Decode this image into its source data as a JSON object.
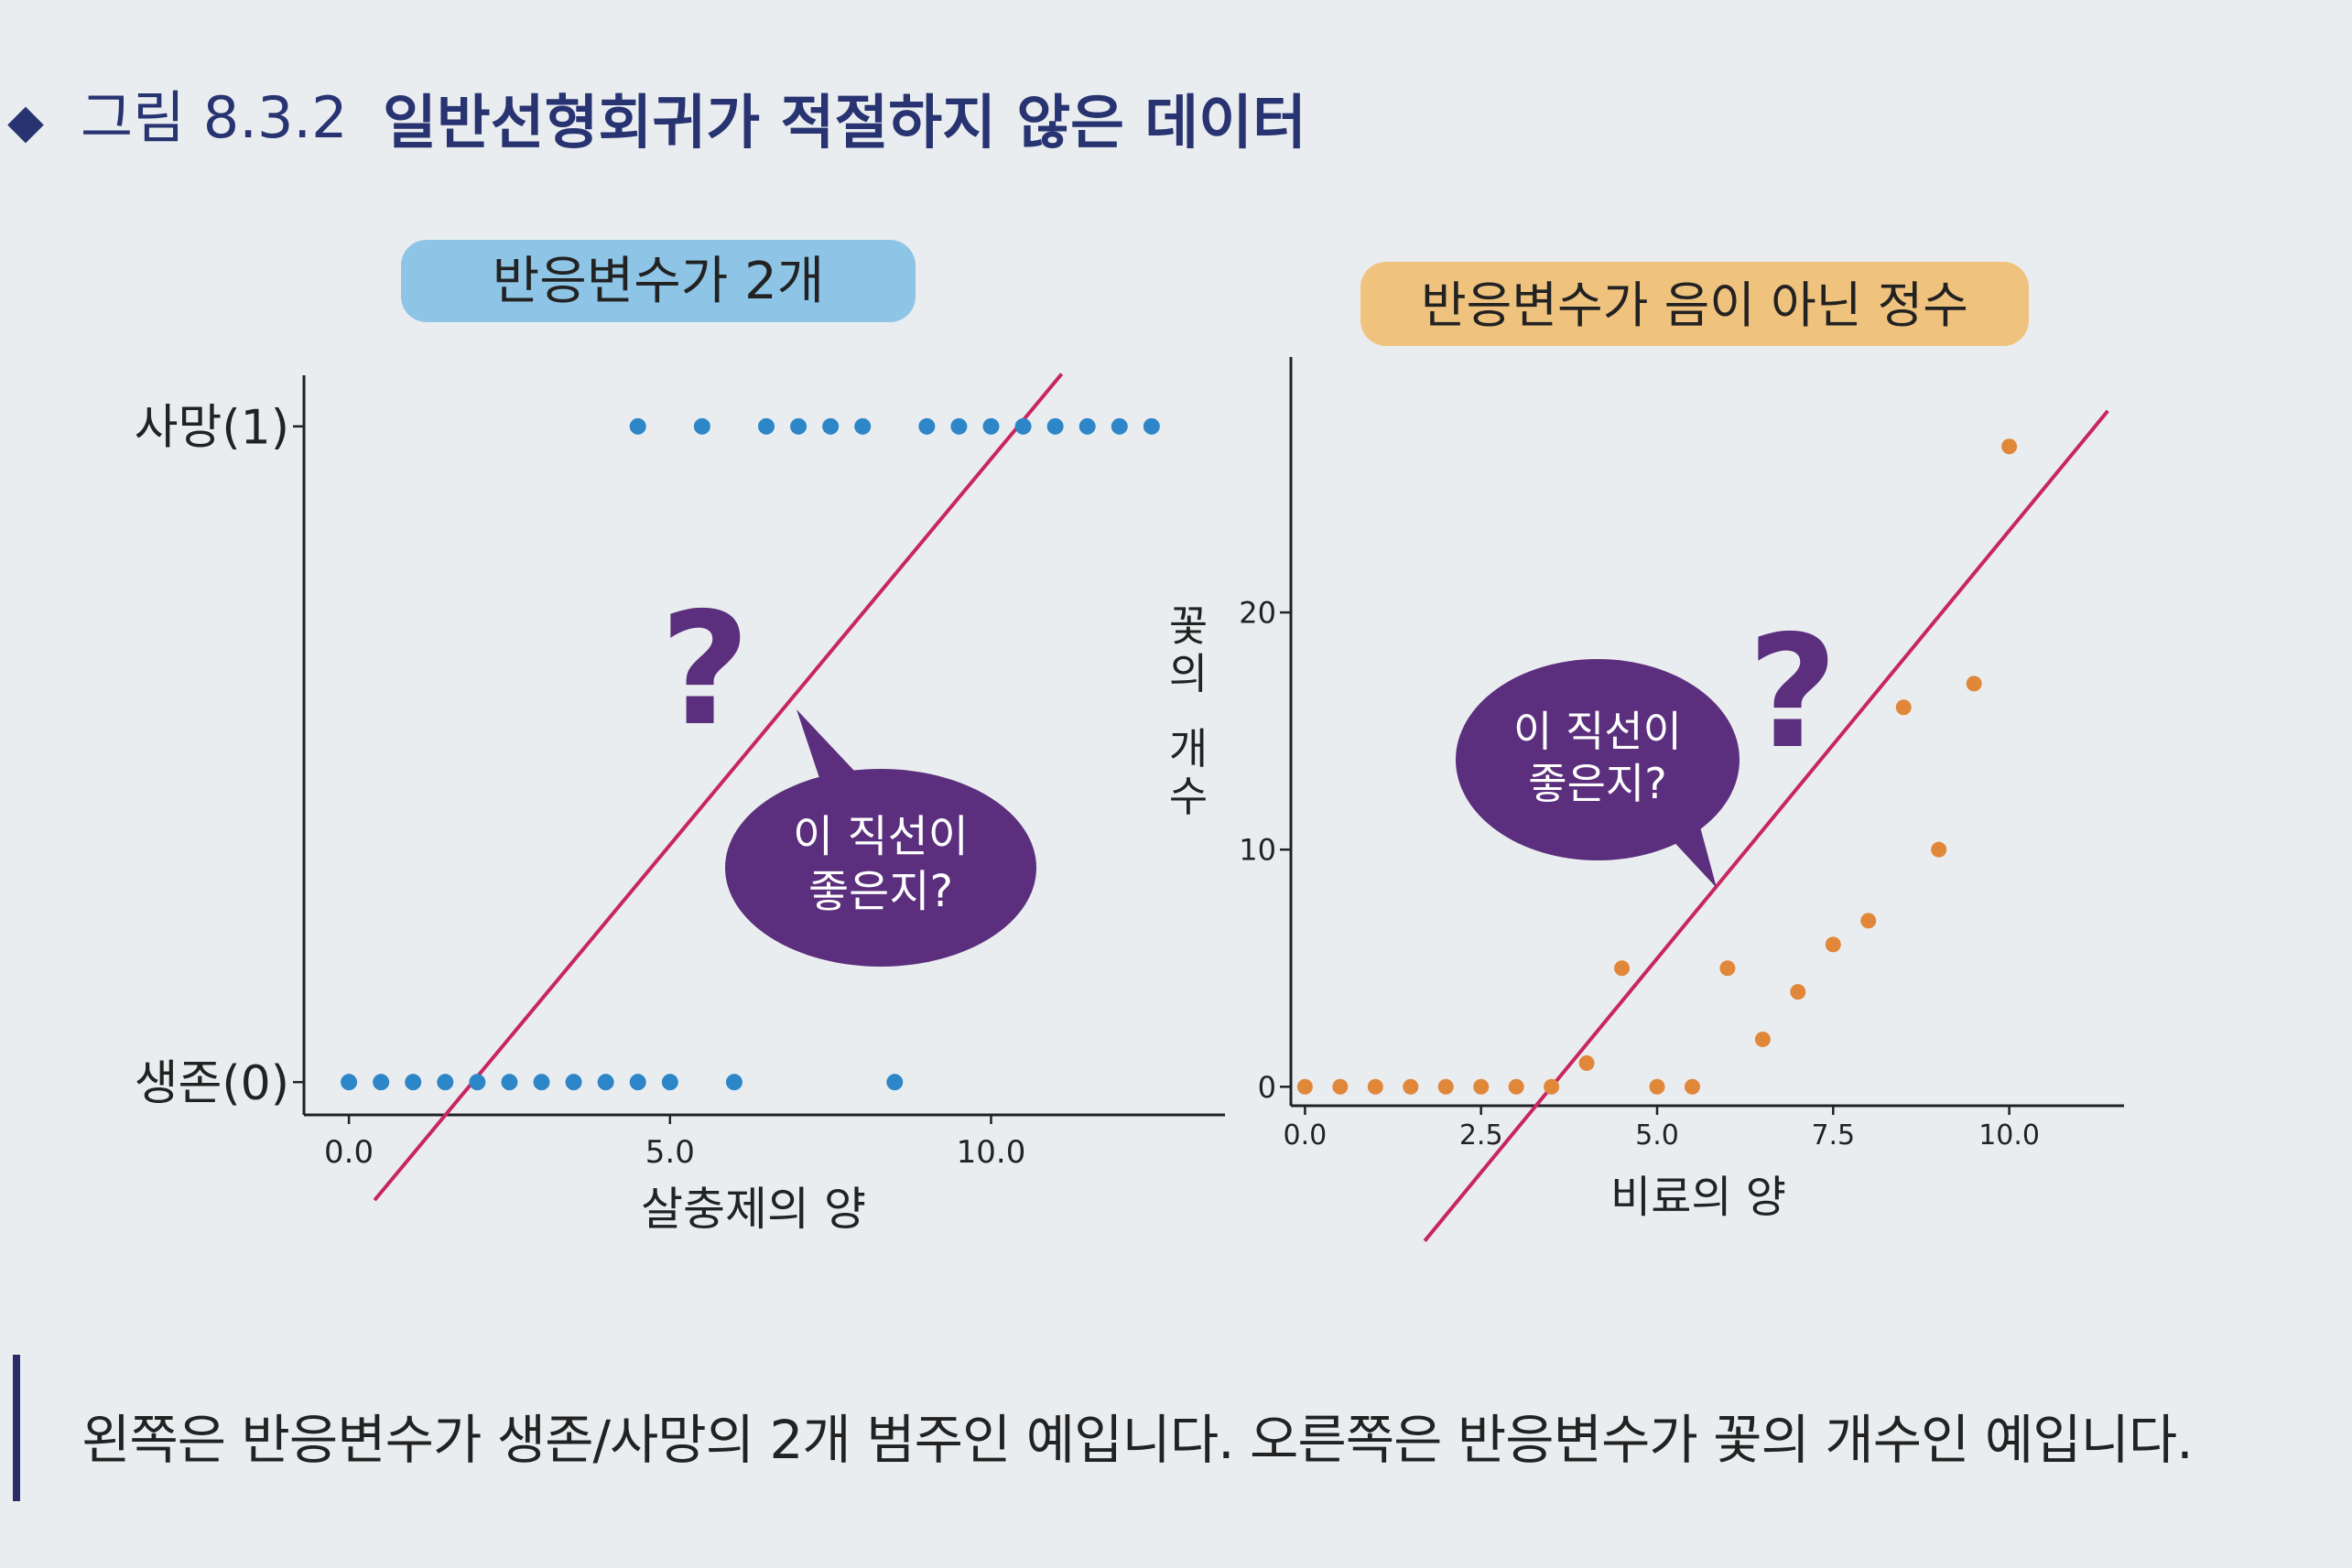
{
  "figure": {
    "marker": "◆",
    "number": "그림 8.3.2",
    "title": "일반선형회귀가 적절하지 않은 데이터",
    "caption": "왼쪽은 반응변수가 생존/사망의 2개 범주인 예입니다. 오른쪽은 반응변수가 꽃의 개수인 예입니다.",
    "colors": {
      "title": "#283372",
      "marker": "#283372",
      "line": "#c8265e",
      "bubble": "#5b2f7d",
      "blue": "#2d86c8",
      "orange": "#e0873a",
      "pillBlue": "#8ec4e6",
      "pillOrange": "#efc27e"
    }
  },
  "chart_data": [
    {
      "type": "scatter",
      "badge": "반응변수가 2개",
      "xlabel": "살충제의 양",
      "ylabel": "",
      "xlim": [
        -0.7,
        13.5
      ],
      "ylim": [
        -0.05,
        1.05
      ],
      "xticks": [
        {
          "v": 0,
          "label": "0.0"
        },
        {
          "v": 5,
          "label": "5.0"
        },
        {
          "v": 10,
          "label": "10.0"
        }
      ],
      "yticks": [
        {
          "v": 0,
          "label": "생존(0)"
        },
        {
          "v": 1,
          "label": "사망(1)"
        }
      ],
      "series": [
        {
          "color": "#2d86c8",
          "points": [
            [
              0,
              0
            ],
            [
              0.5,
              0
            ],
            [
              1,
              0
            ],
            [
              1.5,
              0
            ],
            [
              2,
              0
            ],
            [
              2.5,
              0
            ],
            [
              3,
              0
            ],
            [
              3.5,
              0
            ],
            [
              4,
              0
            ],
            [
              4.5,
              0
            ],
            [
              5,
              0
            ],
            [
              6,
              0
            ],
            [
              8.5,
              0
            ],
            [
              4.5,
              1
            ],
            [
              5.5,
              1
            ],
            [
              6.5,
              1
            ],
            [
              7,
              1
            ],
            [
              7.5,
              1
            ],
            [
              8,
              1
            ],
            [
              9,
              1
            ],
            [
              9.5,
              1
            ],
            [
              10,
              1
            ],
            [
              10.5,
              1
            ],
            [
              11,
              1
            ],
            [
              11.5,
              1
            ],
            [
              12,
              1
            ],
            [
              12.5,
              1
            ]
          ]
        }
      ],
      "fit_line": [
        [
          0.4,
          -0.18
        ],
        [
          11.1,
          1.08
        ]
      ],
      "question": "?",
      "bubble": [
        "이 직선이",
        "좋은지?"
      ]
    },
    {
      "type": "scatter",
      "badge": "반응변수가 음이 아닌 정수",
      "xlabel": "비료의 양",
      "ylabel": "꽃의 개수",
      "xlim": [
        -0.2,
        11.5
      ],
      "ylim": [
        -0.8,
        30
      ],
      "xticks": [
        {
          "v": 0,
          "label": "0.0"
        },
        {
          "v": 2.5,
          "label": "2.5"
        },
        {
          "v": 5,
          "label": "5.0"
        },
        {
          "v": 7.5,
          "label": "7.5"
        },
        {
          "v": 10,
          "label": "10.0"
        }
      ],
      "yticks": [
        {
          "v": 0,
          "label": "0"
        },
        {
          "v": 10,
          "label": "10"
        },
        {
          "v": 20,
          "label": "20"
        }
      ],
      "series": [
        {
          "color": "#e0873a",
          "points": [
            [
              0,
              0
            ],
            [
              0.5,
              0
            ],
            [
              1,
              0
            ],
            [
              1.5,
              0
            ],
            [
              2,
              0
            ],
            [
              2.5,
              0
            ],
            [
              3,
              0
            ],
            [
              3.5,
              0
            ],
            [
              4,
              1
            ],
            [
              4.5,
              5
            ],
            [
              5,
              0
            ],
            [
              5.5,
              0
            ],
            [
              6,
              5
            ],
            [
              6.5,
              2
            ],
            [
              7,
              4
            ],
            [
              7.5,
              6
            ],
            [
              8,
              7
            ],
            [
              8.5,
              16
            ],
            [
              9,
              10
            ],
            [
              9.5,
              17
            ],
            [
              10,
              27
            ]
          ]
        }
      ],
      "fit_line": [
        [
          1.7,
          -6.5
        ],
        [
          11.4,
          28.5
        ]
      ],
      "question": "?",
      "bubble": [
        "이 직선이",
        "좋은지?"
      ]
    }
  ]
}
